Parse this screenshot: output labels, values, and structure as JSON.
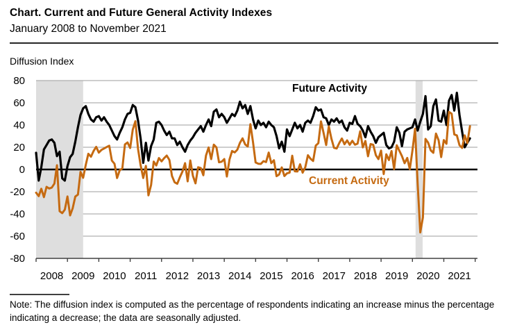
{
  "header": {
    "title": "Chart. Current and Future General Activity Indexes",
    "subtitle": "January 2008 to November 2021"
  },
  "chart": {
    "axis_label": "Diffusion Index",
    "future_label": "Future Activity",
    "current_label": "Current Activity"
  },
  "note": {
    "text": "Note: The diffusion index is computed as the percentage of respondents indicating an increase minus the percentage indicating a decrease; the data are seasonally adjusted."
  },
  "chart_data": {
    "type": "line",
    "title": "Current and Future General Activity Indexes",
    "x_unit": "month",
    "x_range": {
      "start": "2008-01",
      "end": "2021-11"
    },
    "x_tick_years": [
      2008,
      2009,
      2010,
      2011,
      2012,
      2013,
      2014,
      2015,
      2016,
      2017,
      2018,
      2019,
      2020,
      2021
    ],
    "ylim": [
      -80,
      80
    ],
    "y_ticks": [
      80,
      60,
      40,
      20,
      0,
      -20,
      -40,
      -60,
      -80
    ],
    "grid": true,
    "legend_position": "inline-labels",
    "colors": {
      "future": "#000000",
      "current": "#C56A11",
      "recession_band": "#DEDEDE",
      "gridline": "#9C9C9C",
      "axis": "#404040",
      "zero_line": "#000000"
    },
    "recession_bands": [
      {
        "start": "2008-01",
        "end": "2009-06"
      },
      {
        "start": "2020-02",
        "end": "2020-04"
      }
    ],
    "recession_bands_months": [
      [
        0,
        18
      ],
      [
        145.2,
        147.9
      ]
    ],
    "series": [
      {
        "name": "Future Activity",
        "color": "#000000",
        "width": 3.2,
        "values": [
          15,
          -10,
          2,
          18,
          22,
          26,
          27,
          24,
          12,
          16,
          -8,
          -10,
          3,
          11,
          14,
          25,
          38,
          49,
          55,
          57,
          50,
          45,
          43,
          47,
          48,
          44,
          47,
          43,
          40,
          35,
          30,
          27,
          33,
          38,
          45,
          50,
          51,
          58,
          56,
          44,
          28,
          6,
          24,
          8,
          21,
          27,
          42,
          43,
          40,
          35,
          31,
          34,
          28,
          28,
          22,
          25,
          20,
          16,
          22,
          26,
          29,
          33,
          36,
          39,
          34,
          40,
          45,
          39,
          52,
          54,
          47,
          50,
          47,
          42,
          46,
          50,
          48,
          53,
          61,
          55,
          58,
          50,
          57,
          45,
          37,
          44,
          40,
          42,
          38,
          43,
          40,
          38,
          30,
          19,
          25,
          16,
          36,
          30,
          36,
          42,
          37,
          40,
          34,
          42,
          44,
          42,
          48,
          56,
          53,
          54,
          47,
          46,
          40,
          45,
          43,
          46,
          42,
          44,
          38,
          35,
          42,
          41,
          48,
          41,
          39,
          35,
          29,
          39,
          34,
          30,
          24,
          29,
          31,
          33,
          22,
          19,
          20,
          25,
          38,
          33,
          21,
          34,
          36,
          37,
          38,
          45,
          35,
          43,
          50,
          66,
          36,
          39,
          57,
          63,
          44,
          43,
          53,
          40,
          62,
          67,
          53,
          69,
          49,
          34,
          20,
          24,
          28
        ]
      },
      {
        "name": "Current Activity",
        "color": "#C56A11",
        "width": 3,
        "values": [
          -20.9,
          -24,
          -17.4,
          -24.9,
          -15.6,
          -17.1,
          -16.3,
          -12.7,
          3.8,
          -37.5,
          -39.3,
          -36.1,
          -24.3,
          -41.3,
          -35,
          -24.4,
          -22.6,
          -2.2,
          -7.5,
          4.2,
          14.1,
          11.5,
          16.7,
          20.4,
          15.2,
          17.6,
          18.9,
          20.2,
          21.4,
          8,
          5.1,
          -7.7,
          -0.7,
          1,
          22.5,
          24.3,
          19.3,
          35.9,
          43.4,
          18.5,
          3.9,
          -7.7,
          3.2,
          -23.3,
          -14,
          7.1,
          3.6,
          10.3,
          7.3,
          10.2,
          12.5,
          8.5,
          -5.8,
          -11.5,
          -12.9,
          -7.1,
          -1.9,
          5.7,
          -10.7,
          8.1,
          -5.8,
          -12.5,
          2,
          1.3,
          -5.2,
          12.5,
          19.8,
          9.3,
          22.3,
          19.8,
          6.5,
          7,
          9.4,
          -6.3,
          9,
          16.6,
          15.4,
          17.8,
          23.9,
          28,
          22.5,
          20.7,
          40.8,
          24.5,
          6.3,
          5.2,
          5,
          7.5,
          6.7,
          15.2,
          5.7,
          8.3,
          -6,
          -4.5,
          1.9,
          -5.9,
          -3.5,
          -2.8,
          12.4,
          -1.6,
          -1.8,
          4.7,
          -2.9,
          2,
          12.8,
          9.7,
          7.6,
          21.5,
          23.6,
          43.3,
          32.8,
          22,
          38.8,
          27.6,
          19.5,
          18.9,
          23.8,
          27.9,
          22.7,
          26.2,
          22.2,
          25.8,
          22.3,
          23.2,
          34.4,
          19.9,
          25.7,
          11.9,
          22.9,
          22.2,
          12.9,
          9.4,
          17,
          -4.1,
          13.7,
          8.5,
          16.6,
          0.3,
          21.8,
          16.8,
          12,
          5.6,
          10.4,
          0.3,
          17,
          36.7,
          -12.7,
          -56.6,
          -43.1,
          27.5,
          24.1,
          17.2,
          15,
          32.3,
          26.3,
          11.1,
          26.5,
          23.1,
          51.8,
          50.2,
          31.5,
          30.7,
          21.9,
          19.4,
          30.7,
          23.8,
          39
        ]
      }
    ]
  }
}
